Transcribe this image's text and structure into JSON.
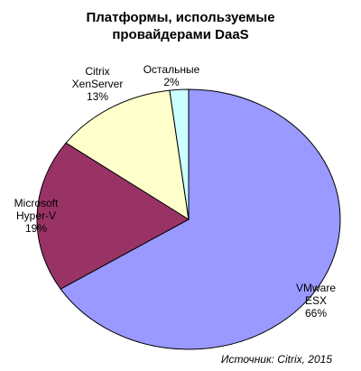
{
  "chart_data": {
    "type": "pie",
    "title": "Платформы, используемые\nпровайдерами DaaS",
    "categories": [
      "VMware\nESX",
      "Microsoft\nHyper-V",
      "Citrix\nXenServer",
      "Остальные"
    ],
    "values": [
      66,
      19,
      13,
      2
    ],
    "value_labels": [
      "66%",
      "19%",
      "13%",
      "2%"
    ],
    "colors": [
      "#9999ff",
      "#993366",
      "#ffffcc",
      "#ccffff"
    ],
    "source": "Источник: Citrix, 2015"
  }
}
